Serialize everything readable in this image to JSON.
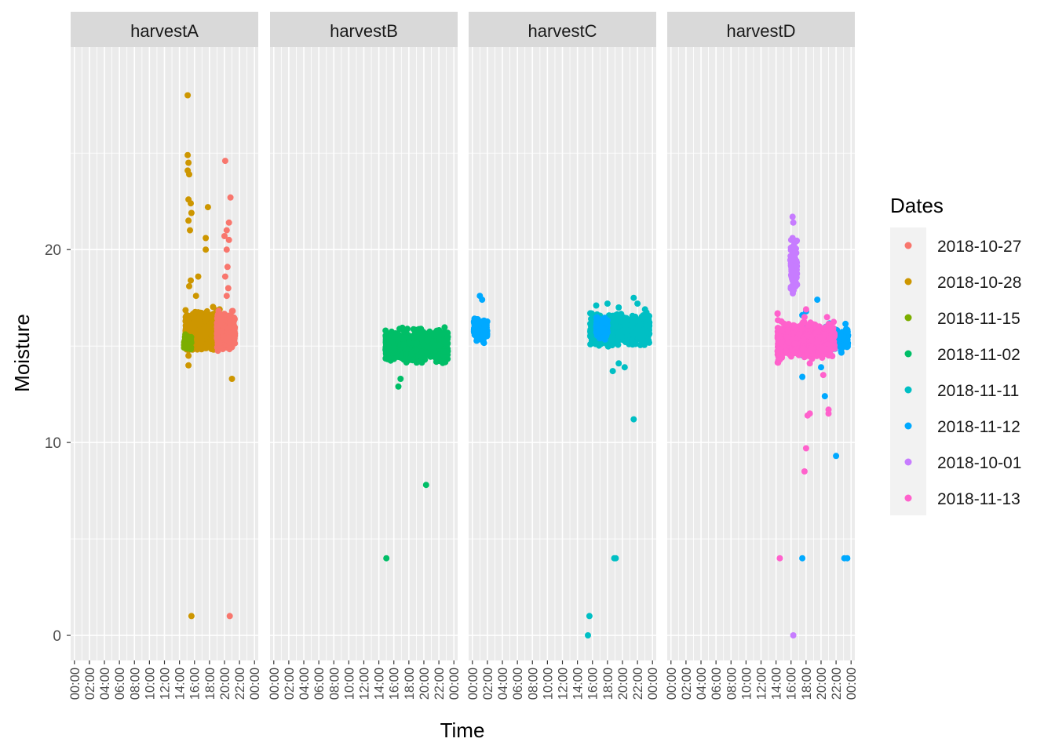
{
  "chart_data": {
    "type": "scatter",
    "xlabel": "Time",
    "ylabel": "Moisture",
    "ylim": [
      -1.3,
      30.5
    ],
    "y_ticks": [
      0,
      10,
      20
    ],
    "y_tick_labels": [
      "0",
      "10",
      "20"
    ],
    "xlim_hours": [
      -0.5,
      24.5
    ],
    "x_ticks_hours": [
      0,
      2,
      4,
      6,
      8,
      10,
      12,
      14,
      16,
      18,
      20,
      22,
      24
    ],
    "x_tick_labels": [
      "00:00",
      "02:00",
      "04:00",
      "06:00",
      "08:00",
      "10:00",
      "12:00",
      "14:00",
      "16:00",
      "18:00",
      "20:00",
      "22:00",
      "00:00"
    ],
    "grid": true,
    "legend": {
      "title": "Dates",
      "position": "right",
      "entries": [
        {
          "label": "2018-10-27",
          "color": "#F8766D"
        },
        {
          "label": "2018-10-28",
          "color": "#CD9600"
        },
        {
          "label": "2018-11-15",
          "color": "#7CAE00"
        },
        {
          "label": "2018-11-02",
          "color": "#00BE67"
        },
        {
          "label": "2018-11-11",
          "color": "#00BFC4"
        },
        {
          "label": "2018-11-12",
          "color": "#00A9FF"
        },
        {
          "label": "2018-10-01",
          "color": "#C77CFF"
        },
        {
          "label": "2018-11-13",
          "color": "#FF61CC"
        }
      ]
    },
    "facets": [
      {
        "label": "harvestA",
        "clusters": [
          {
            "series": "2018-10-28",
            "x": [
              14.8,
              19.7
            ],
            "y": [
              14.5,
              17.2
            ],
            "n": 700
          },
          {
            "series": "2018-10-27",
            "x": [
              19.0,
              21.4
            ],
            "y": [
              14.6,
              17.0
            ],
            "n": 450
          },
          {
            "series": "2018-11-15",
            "x": [
              14.6,
              15.6
            ],
            "y": [
              14.6,
              15.8
            ],
            "n": 60
          }
        ],
        "points": [
          {
            "series": "2018-10-28",
            "xy": [
              [
                15.1,
                28.0
              ],
              [
                15.1,
                24.9
              ],
              [
                15.2,
                24.5
              ],
              [
                15.1,
                24.1
              ],
              [
                15.3,
                23.9
              ],
              [
                15.2,
                22.6
              ],
              [
                15.5,
                22.4
              ],
              [
                15.6,
                21.9
              ],
              [
                15.2,
                21.5
              ],
              [
                15.4,
                21.0
              ],
              [
                17.8,
                22.2
              ],
              [
                17.5,
                20.6
              ],
              [
                17.5,
                20.0
              ],
              [
                16.5,
                18.6
              ],
              [
                15.5,
                18.4
              ],
              [
                15.3,
                18.1
              ],
              [
                16.2,
                17.6
              ],
              [
                15.2,
                14.5
              ],
              [
                15.2,
                14.0
              ],
              [
                21.0,
                13.3
              ],
              [
                15.6,
                1.0
              ]
            ]
          },
          {
            "series": "2018-10-27",
            "xy": [
              [
                20.1,
                24.6
              ],
              [
                20.8,
                22.7
              ],
              [
                20.6,
                21.4
              ],
              [
                20.3,
                21.0
              ],
              [
                20.0,
                20.7
              ],
              [
                20.6,
                20.5
              ],
              [
                20.3,
                20.0
              ],
              [
                20.4,
                19.1
              ],
              [
                20.1,
                18.6
              ],
              [
                20.5,
                18.0
              ],
              [
                20.3,
                17.6
              ],
              [
                20.7,
                1.0
              ]
            ]
          }
        ]
      },
      {
        "label": "harvestB",
        "clusters": [
          {
            "series": "2018-11-02",
            "x": [
              14.9,
              23.2
            ],
            "y": [
              14.0,
              16.0
            ],
            "n": 1300
          }
        ],
        "points": [
          {
            "series": "2018-11-02",
            "xy": [
              [
                14.9,
                15.8
              ],
              [
                16.9,
                13.3
              ],
              [
                16.6,
                12.9
              ],
              [
                20.3,
                7.8
              ],
              [
                15.0,
                4.0
              ]
            ]
          }
        ]
      },
      {
        "label": "harvestC",
        "clusters": [
          {
            "series": "2018-11-12",
            "x": [
              0.2,
              2.0
            ],
            "y": [
              15.1,
              16.6
            ],
            "n": 200
          },
          {
            "series": "2018-11-11",
            "x": [
              15.7,
              23.6
            ],
            "y": [
              14.9,
              16.8
            ],
            "n": 1300
          },
          {
            "series": "2018-11-12",
            "x": [
              16.5,
              18.0
            ],
            "y": [
              15.2,
              16.7
            ],
            "n": 180
          }
        ],
        "points": [
          {
            "series": "2018-11-12",
            "xy": [
              [
                1.0,
                17.6
              ],
              [
                1.3,
                17.4
              ]
            ]
          },
          {
            "series": "2018-11-11",
            "xy": [
              [
                16.5,
                17.1
              ],
              [
                18.0,
                17.2
              ],
              [
                19.5,
                17.0
              ],
              [
                21.5,
                17.5
              ],
              [
                22.0,
                17.2
              ],
              [
                23.0,
                16.9
              ],
              [
                18.7,
                13.7
              ],
              [
                19.5,
                14.1
              ],
              [
                20.3,
                13.9
              ],
              [
                21.5,
                11.2
              ],
              [
                19.1,
                4.0
              ],
              [
                18.9,
                4.0
              ],
              [
                15.6,
                1.0
              ],
              [
                15.4,
                0.0
              ]
            ]
          }
        ]
      },
      {
        "label": "harvestD",
        "clusters": [
          {
            "series": "2018-11-12",
            "x": [
              16.5,
              23.6
            ],
            "y": [
              14.4,
              16.3
            ],
            "n": 350
          },
          {
            "series": "2018-11-13",
            "x": [
              14.2,
              21.8
            ],
            "y": [
              14.2,
              16.4
            ],
            "n": 800
          },
          {
            "series": "2018-11-13",
            "x": [
              14.2,
              14.8
            ],
            "y": [
              13.6,
              16.8
            ],
            "n": 60
          },
          {
            "series": "2018-10-01",
            "x": [
              15.9,
              16.8
            ],
            "y": [
              17.2,
              20.8
            ],
            "n": 90
          }
        ],
        "points": [
          {
            "series": "2018-10-01",
            "xy": [
              [
                16.2,
                21.7
              ],
              [
                16.3,
                21.4
              ],
              [
                16.2,
                20.6
              ],
              [
                16.3,
                0.0
              ]
            ]
          },
          {
            "series": "2018-11-12",
            "xy": [
              [
                19.5,
                17.4
              ],
              [
                18.0,
                16.8
              ],
              [
                17.5,
                16.6
              ],
              [
                17.5,
                13.4
              ],
              [
                20.0,
                13.9
              ],
              [
                20.5,
                12.4
              ],
              [
                22.0,
                9.3
              ],
              [
                17.5,
                4.0
              ],
              [
                23.1,
                4.0
              ],
              [
                23.5,
                4.0
              ]
            ]
          },
          {
            "series": "2018-11-13",
            "xy": [
              [
                18.0,
                16.9
              ],
              [
                17.8,
                16.5
              ],
              [
                18.5,
                14.1
              ],
              [
                20.8,
                16.5
              ],
              [
                20.3,
                13.5
              ],
              [
                21.0,
                11.7
              ],
              [
                21.0,
                11.5
              ],
              [
                18.2,
                11.4
              ],
              [
                18.5,
                11.5
              ],
              [
                18.0,
                9.7
              ],
              [
                17.8,
                8.5
              ],
              [
                14.5,
                4.0
              ]
            ]
          }
        ]
      }
    ]
  }
}
